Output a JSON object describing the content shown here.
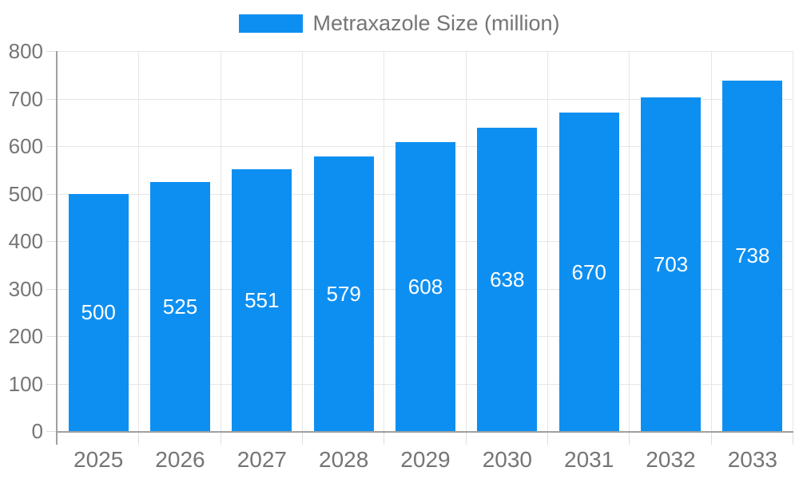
{
  "chart_data": {
    "type": "bar",
    "title": "",
    "legend": {
      "label": "Metraxazole Size (million)",
      "position": "top"
    },
    "categories": [
      "2025",
      "2026",
      "2027",
      "2028",
      "2029",
      "2030",
      "2031",
      "2032",
      "2033"
    ],
    "series": [
      {
        "name": "Metraxazole Size (million)",
        "values": [
          500,
          525,
          551,
          579,
          608,
          638,
          670,
          703,
          738
        ]
      }
    ],
    "xlabel": "",
    "ylabel": "",
    "ylim": [
      0,
      800
    ],
    "ytick_step": 100,
    "grid": true,
    "value_labels": "inside-center",
    "legend_position": "top-center"
  },
  "colors": {
    "bar": "#0d8ff2",
    "axis_line": "#a0a0a0",
    "gridline": "#e6e6e6",
    "tick": "#dddddd",
    "axis_text": "#757575",
    "value_label_text": "#ffffff",
    "background": "#ffffff"
  }
}
